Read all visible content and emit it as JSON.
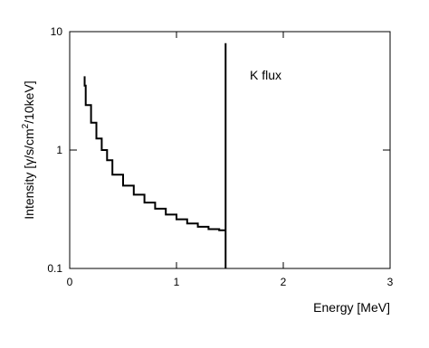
{
  "chart_data": {
    "type": "line",
    "step": true,
    "log_y": true,
    "xlabel": "Energy [MeV]",
    "ylabel": [
      "Intensity [γ/s/cm",
      "2",
      "/10keV]"
    ],
    "annotation": "K flux",
    "xlim": [
      0,
      3
    ],
    "xticks": [
      0,
      1,
      2,
      3
    ],
    "ylim": [
      0.1,
      10
    ],
    "yticks": [
      0.1,
      1,
      10
    ],
    "series": [
      {
        "color": "#000000",
        "x": [
          0.14,
          0.15,
          0.2,
          0.25,
          0.3,
          0.35,
          0.4,
          0.5,
          0.6,
          0.7,
          0.8,
          0.9,
          1.0,
          1.1,
          1.2,
          1.3,
          1.4,
          1.46
        ],
        "values": [
          4.2,
          3.5,
          2.4,
          1.7,
          1.25,
          1.0,
          0.82,
          0.62,
          0.5,
          0.42,
          0.36,
          0.32,
          0.285,
          0.26,
          0.24,
          0.225,
          0.215,
          0.21
        ]
      },
      {
        "color": "#000000",
        "x": [
          1.46,
          1.46
        ],
        "values": [
          0.1,
          8
        ]
      }
    ]
  }
}
